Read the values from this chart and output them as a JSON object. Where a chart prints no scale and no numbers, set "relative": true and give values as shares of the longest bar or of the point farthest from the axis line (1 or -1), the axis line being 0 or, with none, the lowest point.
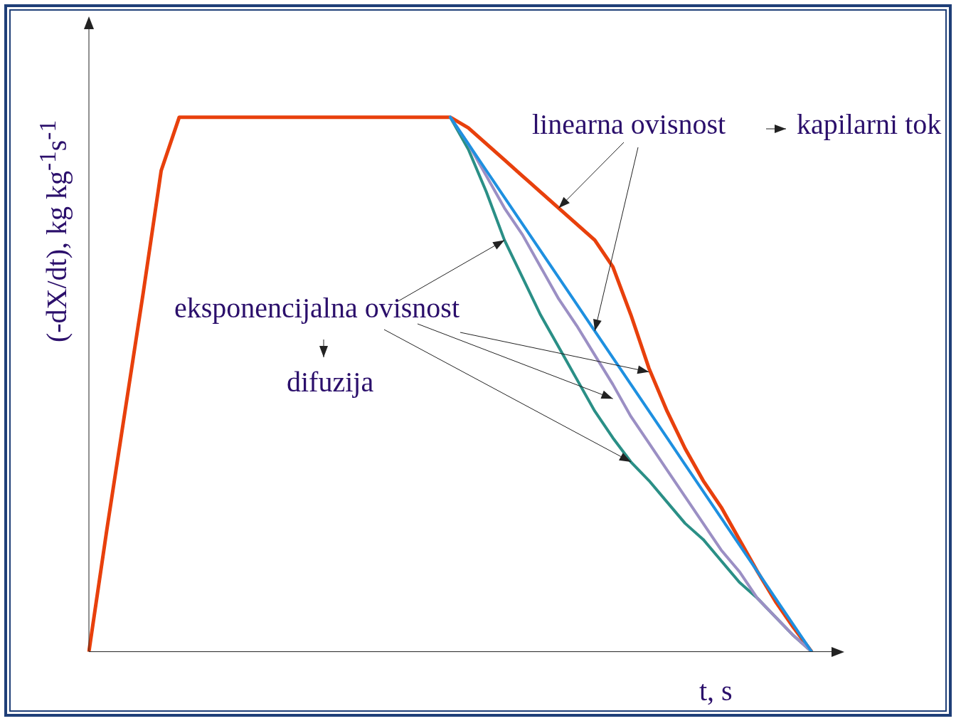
{
  "chart_data": {
    "type": "line",
    "relative": true,
    "xlabel": "t, s",
    "ylabel": "(-dX/dt), kg kg$^{-1}$s$^{-1}$",
    "categories": [
      null,
      null,
      null,
      null,
      null,
      null,
      null,
      null,
      null,
      null,
      null,
      null,
      null,
      null,
      null,
      null,
      null,
      null,
      null,
      null,
      null,
      null,
      null,
      null,
      null,
      null,
      null,
      null,
      null,
      null,
      null,
      null,
      null,
      null,
      null,
      null,
      null,
      null,
      null,
      null,
      null
    ],
    "series": [
      {
        "color": "#e8400c",
        "values": [
          0,
          0.23,
          0.45,
          0.67,
          0.9,
          1,
          1,
          1,
          1,
          1,
          1,
          1,
          1,
          1,
          1,
          1,
          1,
          1,
          1,
          1,
          1,
          0.98,
          0.95,
          0.92,
          0.89,
          0.86,
          0.83,
          0.8,
          0.77,
          0.72,
          0.63,
          0.53,
          0.45,
          0.38,
          0.32,
          0.27,
          0.21,
          0.15,
          0.094,
          0.045,
          0
        ]
      },
      {
        "color": "#1e90e0",
        "values": [
          null,
          null,
          null,
          null,
          null,
          null,
          null,
          null,
          null,
          null,
          null,
          null,
          null,
          null,
          null,
          null,
          null,
          null,
          null,
          null,
          1,
          0.95,
          0.9,
          0.85,
          0.8,
          0.75,
          0.7,
          0.65,
          0.6,
          0.55,
          0.5,
          0.45,
          0.4,
          0.35,
          0.3,
          0.25,
          0.2,
          0.15,
          0.1,
          0.05,
          0
        ]
      },
      {
        "color": "#9b8fc4",
        "values": [
          null,
          null,
          null,
          null,
          null,
          null,
          null,
          null,
          null,
          null,
          null,
          null,
          null,
          null,
          null,
          null,
          null,
          null,
          null,
          null,
          1,
          0.95,
          0.89,
          0.83,
          0.78,
          0.72,
          0.66,
          0.61,
          0.555,
          0.5,
          0.44,
          0.39,
          0.34,
          0.29,
          0.24,
          0.19,
          0.15,
          0.1,
          0.065,
          0.03,
          0
        ]
      },
      {
        "color": "#2a8f86",
        "values": [
          null,
          null,
          null,
          null,
          null,
          null,
          null,
          null,
          null,
          null,
          null,
          null,
          null,
          null,
          null,
          null,
          null,
          null,
          null,
          null,
          1,
          0.94,
          0.86,
          0.77,
          0.7,
          0.63,
          0.57,
          0.51,
          0.45,
          0.4,
          0.355,
          0.32,
          0.28,
          0.24,
          0.21,
          0.17,
          0.13,
          0.1,
          0.065,
          0.03,
          0
        ]
      }
    ],
    "annotations": [
      "linearna ovisnost",
      "kapilarni tok",
      "eksponencijalna ovisnost",
      "difuzija"
    ],
    "marker": "none",
    "line_style": "solid",
    "legend": false,
    "grid": false
  }
}
